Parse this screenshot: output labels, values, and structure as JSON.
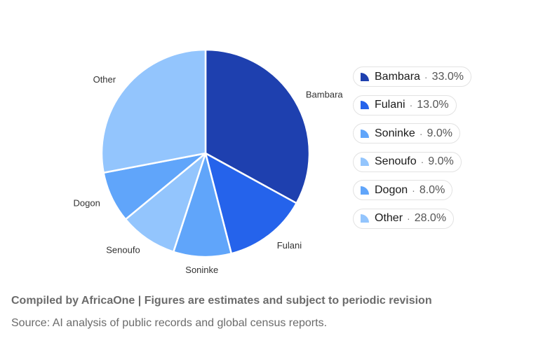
{
  "chart_data": {
    "type": "pie",
    "categories": [
      "Bambara",
      "Fulani",
      "Soninke",
      "Senoufo",
      "Dogon",
      "Other"
    ],
    "values": [
      33.0,
      13.0,
      9.0,
      9.0,
      8.0,
      28.0
    ],
    "colors": [
      "#1e40af",
      "#2563eb",
      "#60a5fa",
      "#93c5fd",
      "#60a5fa",
      "#93c5fd"
    ],
    "legend_placement": "right",
    "legend": [
      {
        "label": "Bambara",
        "value_text": "33.0%"
      },
      {
        "label": "Fulani",
        "value_text": "13.0%"
      },
      {
        "label": "Soninke",
        "value_text": "9.0%"
      },
      {
        "label": "Senoufo",
        "value_text": "9.0%"
      },
      {
        "label": "Dogon",
        "value_text": "8.0%"
      },
      {
        "label": "Other",
        "value_text": "28.0%"
      }
    ],
    "separator": "·"
  },
  "footer": {
    "compiled": "Compiled by AfricaOne | Figures are estimates and subject to periodic revision",
    "source": "Source: AI analysis of public records and global census reports."
  }
}
